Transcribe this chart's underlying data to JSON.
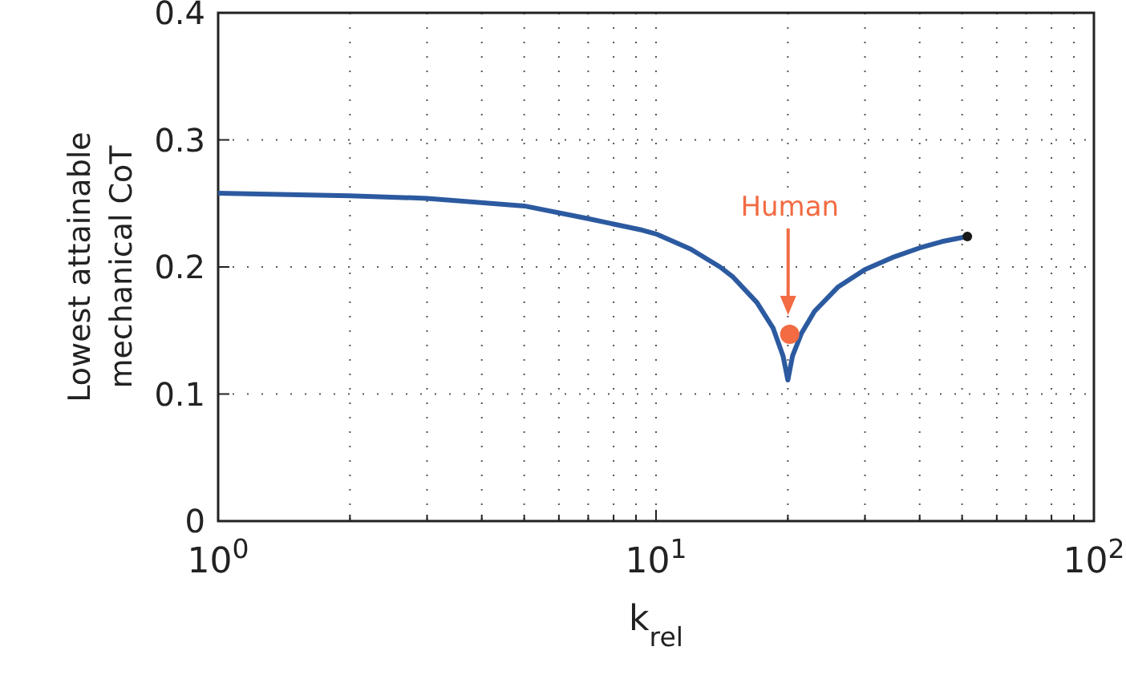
{
  "chart_data": {
    "type": "line",
    "xlabel": "k$_{rel}$",
    "ylabel": "Lowest attainable\nmechanical CoT",
    "log": "x",
    "xlim": [
      1,
      100
    ],
    "ylim": [
      0,
      0.4
    ],
    "xticks": [
      {
        "value": 1,
        "label": "10$^{0}$"
      },
      {
        "value": 2,
        "label": null
      },
      {
        "value": 3,
        "label": null
      },
      {
        "value": 4,
        "label": null
      },
      {
        "value": 5,
        "label": null
      },
      {
        "value": 6,
        "label": null
      },
      {
        "value": 7,
        "label": null
      },
      {
        "value": 8,
        "label": null
      },
      {
        "value": 9,
        "label": null
      },
      {
        "value": 10,
        "label": "10$^{1}$"
      },
      {
        "value": 20,
        "label": null
      },
      {
        "value": 30,
        "label": null
      },
      {
        "value": 40,
        "label": null
      },
      {
        "value": 50,
        "label": null
      },
      {
        "value": 60,
        "label": null
      },
      {
        "value": 70,
        "label": null
      },
      {
        "value": 80,
        "label": null
      },
      {
        "value": 90,
        "label": null
      },
      {
        "value": 100,
        "label": "10$^{2}$"
      }
    ],
    "yticks": [
      0,
      0.1,
      0.2,
      0.3,
      0.4
    ],
    "grid": true,
    "series": [
      {
        "color": "#2c5aa0",
        "x": [
          1,
          2,
          3,
          5,
          7,
          9.3,
          10,
          12,
          14,
          15,
          17,
          18.5,
          19.5,
          20,
          20.5,
          21.5,
          23,
          26,
          30,
          35,
          40,
          45,
          51.4
        ],
        "values": [
          0.258,
          0.256,
          0.254,
          0.248,
          0.238,
          0.229,
          0.226,
          0.214,
          0.2,
          0.192,
          0.172,
          0.152,
          0.13,
          0.111,
          0.13,
          0.148,
          0.165,
          0.184,
          0.198,
          0.208,
          0.215,
          0.22,
          0.224
        ]
      },
      {
        "type": "scatter",
        "color": "#1a1a1a",
        "marker": "circle",
        "x": [
          51.4
        ],
        "values": [
          0.224
        ]
      },
      {
        "type": "scatter",
        "name": "Human",
        "color": "#f26b43",
        "marker": "circle",
        "x": [
          20.2
        ],
        "values": [
          0.147
        ]
      }
    ]
  }
}
